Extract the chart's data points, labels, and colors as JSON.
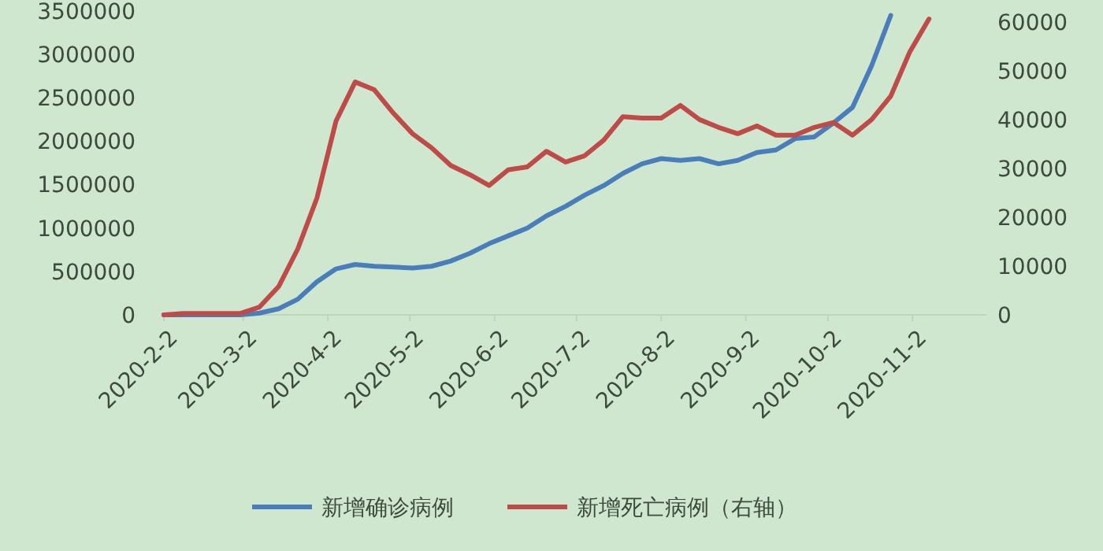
{
  "chart_data": {
    "type": "line",
    "x": [
      "2020-02-02",
      "2020-02-09",
      "2020-02-16",
      "2020-02-23",
      "2020-03-01",
      "2020-03-08",
      "2020-03-15",
      "2020-03-22",
      "2020-03-29",
      "2020-04-05",
      "2020-04-12",
      "2020-04-19",
      "2020-04-26",
      "2020-05-03",
      "2020-05-10",
      "2020-05-17",
      "2020-05-24",
      "2020-05-31",
      "2020-06-07",
      "2020-06-14",
      "2020-06-21",
      "2020-06-28",
      "2020-07-05",
      "2020-07-12",
      "2020-07-19",
      "2020-07-26",
      "2020-08-02",
      "2020-08-09",
      "2020-08-16",
      "2020-08-23",
      "2020-08-30",
      "2020-09-06",
      "2020-09-13",
      "2020-09-20",
      "2020-09-27",
      "2020-10-04",
      "2020-10-11",
      "2020-10-18",
      "2020-10-25",
      "2020-11-01",
      "2020-11-08"
    ],
    "series": [
      {
        "name": "新增确诊病例",
        "color": "#4a7ebb",
        "values": [
          0,
          0,
          0,
          0,
          0,
          20000,
          70000,
          180000,
          380000,
          530000,
          580000,
          560000,
          550000,
          540000,
          560000,
          620000,
          710000,
          820000,
          910000,
          1000000,
          1140000,
          1250000,
          1380000,
          1490000,
          1630000,
          1740000,
          1800000,
          1780000,
          1800000,
          1740000,
          1780000,
          1870000,
          1900000,
          2030000,
          2050000,
          2210000,
          2390000,
          2870000,
          3450000,
          null,
          null
        ]
      },
      {
        "name": "新增死亡病例（右轴）",
        "color": "#be4b48",
        "axis": "y2",
        "values": [
          0,
          300,
          300,
          300,
          300,
          1600,
          5800,
          13500,
          23900,
          39700,
          47700,
          46100,
          41300,
          37100,
          34200,
          30600,
          28700,
          26500,
          29700,
          30300,
          33500,
          31300,
          32600,
          35800,
          40600,
          40300,
          40300,
          42900,
          40000,
          38400,
          37100,
          38700,
          36800,
          36800,
          38400,
          39400,
          36800,
          40000,
          44800,
          53900,
          60600
        ]
      }
    ],
    "xlim": [
      "2020-02-02",
      "2020-11-29"
    ],
    "xticks": [
      {
        "value": "2020-02-02",
        "label": "2020-2-2"
      },
      {
        "value": "2020-03-02",
        "label": "2020-3-2"
      },
      {
        "value": "2020-04-02",
        "label": "2020-4-2"
      },
      {
        "value": "2020-05-02",
        "label": "2020-5-2"
      },
      {
        "value": "2020-06-02",
        "label": "2020-6-2"
      },
      {
        "value": "2020-07-02",
        "label": "2020-7-2"
      },
      {
        "value": "2020-08-02",
        "label": "2020-8-2"
      },
      {
        "value": "2020-09-02",
        "label": "2020-9-2"
      },
      {
        "value": "2020-10-02",
        "label": "2020-10-2"
      },
      {
        "value": "2020-11-02",
        "label": "2020-11-2"
      }
    ],
    "ylim": [
      0,
      3600000
    ],
    "yticks": [
      0,
      500000,
      1000000,
      1500000,
      2000000,
      2500000,
      3000000,
      3500000
    ],
    "y2lim": [
      0,
      64000
    ],
    "y2ticks": [
      0,
      10000,
      20000,
      30000,
      40000,
      50000,
      60000
    ],
    "legend": "bottom"
  }
}
